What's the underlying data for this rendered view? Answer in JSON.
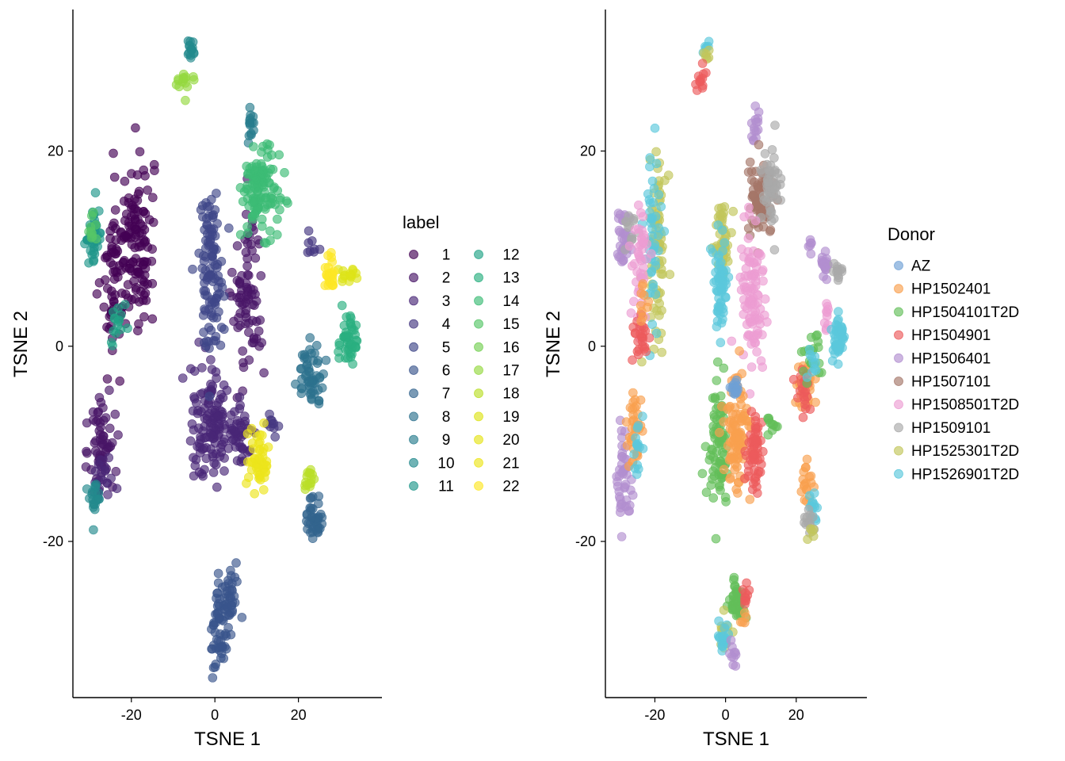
{
  "chart_data": [
    {
      "type": "scatter",
      "xlabel": "TSNE 1",
      "ylabel": "TSNE 2",
      "xlim": [
        -34,
        40
      ],
      "ylim": [
        -36,
        34.5
      ],
      "xticks": [
        -20,
        0,
        20
      ],
      "yticks": [
        -20,
        0,
        20
      ],
      "xtick_labels": [
        "-20",
        "0",
        "20"
      ],
      "ytick_labels": [
        "-20",
        "0",
        "20"
      ],
      "grid": false,
      "legend": {
        "title": "label",
        "placement": "right",
        "columns": 2,
        "entries": [
          "1",
          "2",
          "3",
          "4",
          "5",
          "6",
          "7",
          "8",
          "9",
          "10",
          "11",
          "12",
          "13",
          "14",
          "15",
          "16",
          "17",
          "18",
          "19",
          "20",
          "21",
          "22"
        ]
      },
      "palette": [
        "#440154",
        "#481567",
        "#482677",
        "#453781",
        "#3f4788",
        "#39558c",
        "#32648e",
        "#2d718e",
        "#287d8e",
        "#238a8d",
        "#1f968b",
        "#20a386",
        "#29af7f",
        "#3cbc75",
        "#56c667",
        "#75d054",
        "#95d840",
        "#bade28",
        "#dde318",
        "#e5e419",
        "#ece51b",
        "#fde725"
      ],
      "clusters": [
        {
          "label": "1",
          "cx": -19,
          "cy": 11,
          "sx": 2.2,
          "sy": 4.5,
          "n": 120
        },
        {
          "label": "1",
          "cx": -24,
          "cy": 7,
          "sx": 1.5,
          "sy": 4.0,
          "n": 60
        },
        {
          "label": "2",
          "cx": 8,
          "cy": 5,
          "sx": 1.8,
          "sy": 4.5,
          "n": 80
        },
        {
          "label": "2",
          "cx": -27,
          "cy": -10,
          "sx": 1.5,
          "sy": 2.8,
          "n": 60
        },
        {
          "label": "3",
          "cx": -1,
          "cy": -8,
          "sx": 2.6,
          "sy": 3.0,
          "n": 120
        },
        {
          "label": "3",
          "cx": 6,
          "cy": -8.5,
          "sx": 2.2,
          "sy": 1.8,
          "n": 50
        },
        {
          "label": "3",
          "cx": -27,
          "cy": -13.5,
          "sx": 1.2,
          "sy": 1.2,
          "n": 20
        },
        {
          "label": "4",
          "cx": 23,
          "cy": 10,
          "sx": 0.8,
          "sy": 0.6,
          "n": 8
        },
        {
          "label": "4",
          "cx": 14,
          "cy": -8,
          "sx": 1.0,
          "sy": 0.6,
          "n": 10
        },
        {
          "label": "5",
          "cx": -1,
          "cy": 8,
          "sx": 1.5,
          "sy": 4.0,
          "n": 110
        },
        {
          "label": "6",
          "cx": 3,
          "cy": -26,
          "sx": 1.5,
          "sy": 1.5,
          "n": 50
        },
        {
          "label": "6",
          "cx": 1,
          "cy": -30,
          "sx": 1.0,
          "sy": 1.6,
          "n": 40
        },
        {
          "label": "7",
          "cx": 24,
          "cy": -17.5,
          "sx": 1.0,
          "sy": 1.2,
          "n": 40
        },
        {
          "label": "8",
          "cx": 23,
          "cy": -3,
          "sx": 1.6,
          "sy": 1.5,
          "n": 55
        },
        {
          "label": "9",
          "cx": 8.5,
          "cy": 22.8,
          "sx": 0.5,
          "sy": 0.7,
          "n": 15
        },
        {
          "label": "10",
          "cx": -5.5,
          "cy": 30.5,
          "sx": 0.6,
          "sy": 0.6,
          "n": 15
        },
        {
          "label": "10",
          "cx": -29,
          "cy": -16,
          "sx": 0.8,
          "sy": 1.2,
          "n": 20
        },
        {
          "label": "11",
          "cx": -29,
          "cy": 11.5,
          "sx": 1.1,
          "sy": 1.5,
          "n": 40
        },
        {
          "label": "12",
          "cx": -23,
          "cy": 2,
          "sx": 0.8,
          "sy": 1.2,
          "n": 15
        },
        {
          "label": "13",
          "cx": 32,
          "cy": 0.5,
          "sx": 1.2,
          "sy": 1.5,
          "n": 45
        },
        {
          "label": "14",
          "cx": 11,
          "cy": 16,
          "sx": 2.2,
          "sy": 2.0,
          "n": 120
        },
        {
          "label": "15",
          "cx": -30,
          "cy": 12,
          "sx": 0.8,
          "sy": 0.8,
          "n": 10
        },
        {
          "label": "17",
          "cx": -7,
          "cy": 27,
          "sx": 1.0,
          "sy": 0.8,
          "n": 15
        },
        {
          "label": "18",
          "cx": 22.5,
          "cy": -14,
          "sx": 0.8,
          "sy": 1.0,
          "n": 15
        },
        {
          "label": "19",
          "cx": 31.5,
          "cy": 7.5,
          "sx": 1.2,
          "sy": 0.6,
          "n": 15
        },
        {
          "label": "21",
          "cx": 10.5,
          "cy": -11.5,
          "sx": 1.2,
          "sy": 1.5,
          "n": 50
        },
        {
          "label": "22",
          "cx": 28,
          "cy": 7.5,
          "sx": 0.8,
          "sy": 0.8,
          "n": 25
        }
      ]
    },
    {
      "type": "scatter",
      "xlabel": "TSNE 1",
      "ylabel": "TSNE 2",
      "xlim": [
        -34,
        40
      ],
      "ylim": [
        -36,
        34.5
      ],
      "xticks": [
        -20,
        0,
        20
      ],
      "yticks": [
        -20,
        0,
        20
      ],
      "xtick_labels": [
        "-20",
        "0",
        "20"
      ],
      "ytick_labels": [
        "-20",
        "0",
        "20"
      ],
      "grid": false,
      "legend": {
        "title": "Donor",
        "placement": "right",
        "columns": 1,
        "entries": [
          "AZ",
          "HP1502401",
          "HP1504101T2D",
          "HP1504901",
          "HP1506401",
          "HP1507101",
          "HP1508501T2D",
          "HP1509101",
          "HP1525301T2D",
          "HP1526901T2D"
        ]
      },
      "palette": [
        "#6fa0d5",
        "#f9a04e",
        "#63be59",
        "#ec5b5c",
        "#b28fd0",
        "#a57669",
        "#ec9cd2",
        "#a9a9a9",
        "#c2c65a",
        "#5bc8dc"
      ],
      "clusters": [
        {
          "label": "HP1526901T2D",
          "cx": -5.5,
          "cy": 30.5,
          "sx": 0.6,
          "sy": 0.5,
          "n": 6
        },
        {
          "label": "HP1525301T2D",
          "cx": -5.5,
          "cy": 30,
          "sx": 0.6,
          "sy": 0.6,
          "n": 6
        },
        {
          "label": "HP1504901",
          "cx": -7,
          "cy": 27,
          "sx": 1.0,
          "sy": 1.0,
          "n": 12
        },
        {
          "label": "HP1506401",
          "cx": 8.5,
          "cy": 22.5,
          "sx": 0.6,
          "sy": 0.9,
          "n": 15
        },
        {
          "label": "HP1507101",
          "cx": 10,
          "cy": 15,
          "sx": 1.8,
          "sy": 1.8,
          "n": 80
        },
        {
          "label": "HP1509101",
          "cx": 13,
          "cy": 16,
          "sx": 1.5,
          "sy": 2.0,
          "n": 50
        },
        {
          "label": "HP1506401",
          "cx": -29,
          "cy": 11,
          "sx": 1.2,
          "sy": 1.5,
          "n": 35
        },
        {
          "label": "HP1509101",
          "cx": -27,
          "cy": 12,
          "sx": 1.0,
          "sy": 1.0,
          "n": 12
        },
        {
          "label": "HP1525301T2D",
          "cx": -19,
          "cy": 11,
          "sx": 1.2,
          "sy": 4.5,
          "n": 75
        },
        {
          "label": "HP1526901T2D",
          "cx": -21,
          "cy": 10,
          "sx": 1.2,
          "sy": 4.5,
          "n": 45
        },
        {
          "label": "HP1508501T2D",
          "cx": -24,
          "cy": 8,
          "sx": 1.2,
          "sy": 3.5,
          "n": 45
        },
        {
          "label": "HP1525301T2D",
          "cx": -1,
          "cy": 11,
          "sx": 1.0,
          "sy": 2.0,
          "n": 50
        },
        {
          "label": "HP1526901T2D",
          "cx": -1.5,
          "cy": 6,
          "sx": 1.0,
          "sy": 2.5,
          "n": 60
        },
        {
          "label": "HP1508501T2D",
          "cx": 7.5,
          "cy": 5,
          "sx": 1.8,
          "sy": 4.5,
          "n": 100
        },
        {
          "label": "HP1504901",
          "cx": -24,
          "cy": 1,
          "sx": 1.2,
          "sy": 1.5,
          "n": 25
        },
        {
          "label": "HP1502401",
          "cx": -23,
          "cy": 4,
          "sx": 0.6,
          "sy": 1.5,
          "n": 10
        },
        {
          "label": "HP1506401",
          "cx": 24,
          "cy": 10,
          "sx": 0.6,
          "sy": 0.5,
          "n": 6
        },
        {
          "label": "HP1506401",
          "cx": 28,
          "cy": 8,
          "sx": 0.6,
          "sy": 0.8,
          "n": 20
        },
        {
          "label": "HP1509101",
          "cx": 32,
          "cy": 7.5,
          "sx": 1.0,
          "sy": 0.6,
          "n": 12
        },
        {
          "label": "HP1508501T2D",
          "cx": 28.5,
          "cy": 3,
          "sx": 0.6,
          "sy": 0.8,
          "n": 10
        },
        {
          "label": "HP1526901T2D",
          "cx": 32,
          "cy": 0.8,
          "sx": 0.9,
          "sy": 1.3,
          "n": 45
        },
        {
          "label": "HP1502401",
          "cx": 22,
          "cy": -4,
          "sx": 1.3,
          "sy": 1.5,
          "n": 30
        },
        {
          "label": "HP1504901",
          "cx": 22,
          "cy": -5,
          "sx": 1.0,
          "sy": 1.2,
          "n": 20
        },
        {
          "label": "HP1504101T2D",
          "cx": 25,
          "cy": -1,
          "sx": 1.4,
          "sy": 1.2,
          "n": 20
        },
        {
          "label": "HP1526901T2D",
          "cx": 24.5,
          "cy": -2,
          "sx": 1.0,
          "sy": 1.0,
          "n": 10
        },
        {
          "label": "HP1504101T2D",
          "cx": -2,
          "cy": -10,
          "sx": 1.5,
          "sy": 3.0,
          "n": 80
        },
        {
          "label": "HP1502401",
          "cx": 3,
          "cy": -9,
          "sx": 1.8,
          "sy": 3.0,
          "n": 100
        },
        {
          "label": "HP1504901",
          "cx": 8.5,
          "cy": -11,
          "sx": 1.2,
          "sy": 2.0,
          "n": 60
        },
        {
          "label": "HP1504101T2D",
          "cx": 13,
          "cy": -8,
          "sx": 1.0,
          "sy": 0.6,
          "n": 10
        },
        {
          "label": "HP1506401",
          "cx": -28.5,
          "cy": -14,
          "sx": 1.0,
          "sy": 2.5,
          "n": 45
        },
        {
          "label": "HP1502401",
          "cx": -25.5,
          "cy": -8,
          "sx": 1.0,
          "sy": 2.0,
          "n": 35
        },
        {
          "label": "HP1526901T2D",
          "cx": -25,
          "cy": -10.5,
          "sx": 0.8,
          "sy": 1.2,
          "n": 15
        },
        {
          "label": "AZ",
          "cx": 2.5,
          "cy": -4.5,
          "sx": 0.6,
          "sy": 0.5,
          "n": 15
        },
        {
          "label": "HP1502401",
          "cx": 22.5,
          "cy": -14,
          "sx": 0.8,
          "sy": 1.0,
          "n": 18
        },
        {
          "label": "HP1526901T2D",
          "cx": 24.5,
          "cy": -16.5,
          "sx": 0.6,
          "sy": 0.8,
          "n": 15
        },
        {
          "label": "HP1509101",
          "cx": 23.5,
          "cy": -18,
          "sx": 0.8,
          "sy": 0.6,
          "n": 12
        },
        {
          "label": "HP1525301T2D",
          "cx": 24,
          "cy": -18.8,
          "sx": 0.6,
          "sy": 0.4,
          "n": 5
        },
        {
          "label": "HP1504101T2D",
          "cx": 3,
          "cy": -26,
          "sx": 1.2,
          "sy": 1.2,
          "n": 40
        },
        {
          "label": "HP1504901",
          "cx": 6,
          "cy": -25.5,
          "sx": 0.5,
          "sy": 0.8,
          "n": 10
        },
        {
          "label": "HP1525301T2D",
          "cx": 0,
          "cy": -29,
          "sx": 0.8,
          "sy": 0.8,
          "n": 15
        },
        {
          "label": "HP1526901T2D",
          "cx": -0.5,
          "cy": -30,
          "sx": 0.8,
          "sy": 1.0,
          "n": 18
        },
        {
          "label": "HP1506401",
          "cx": 2.5,
          "cy": -31.5,
          "sx": 0.5,
          "sy": 0.7,
          "n": 10
        },
        {
          "label": "HP1502401",
          "cx": 5,
          "cy": -28,
          "sx": 0.6,
          "sy": 0.6,
          "n": 5
        }
      ]
    }
  ]
}
